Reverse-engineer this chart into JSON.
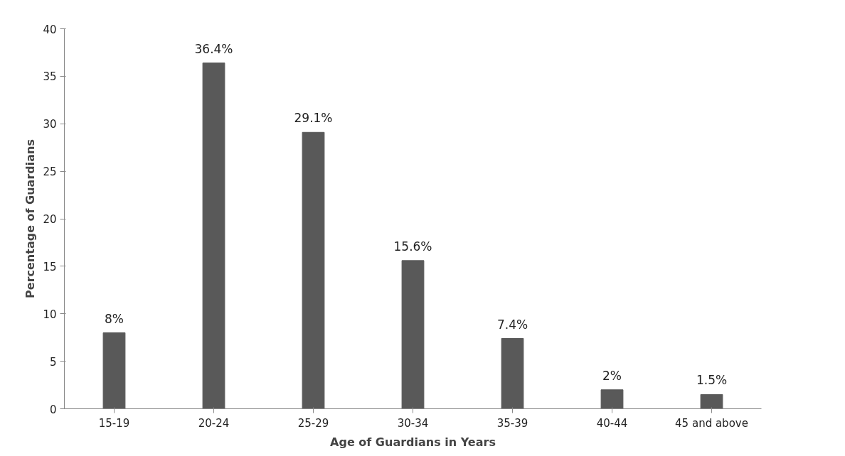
{
  "chart_data": {
    "type": "bar",
    "xlabel": "Age of Guardians in Years",
    "ylabel": "Percentage of Guardians",
    "categories": [
      "15-19",
      "20-24",
      "25-29",
      "30-34",
      "35-39",
      "40-44",
      "45 and above"
    ],
    "values": [
      8,
      36.4,
      29.1,
      15.6,
      7.4,
      2,
      1.5
    ],
    "value_labels": [
      "8%",
      "36.4%",
      "29.1%",
      "15.6%",
      "7.4%",
      "2%",
      "1.5%"
    ],
    "color": "#595959",
    "ylim": [
      0,
      40
    ],
    "yticks": [
      0,
      5,
      10,
      15,
      20,
      25,
      30,
      35,
      40
    ],
    "grid": false
  }
}
